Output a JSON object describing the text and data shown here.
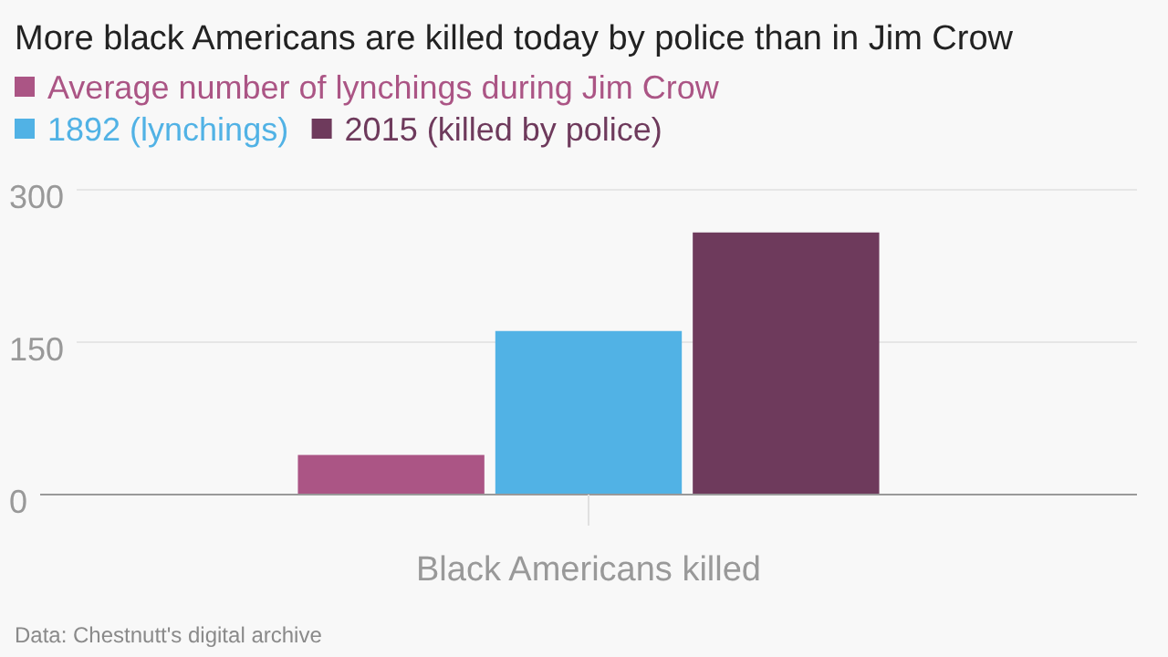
{
  "chart_data": {
    "type": "bar",
    "title": "More black Americans are killed today by police than in Jim Crow",
    "categories": [
      "Black Americans killed"
    ],
    "series": [
      {
        "name": "Average number of lynchings during Jim Crow",
        "color": "#ab5585",
        "values": [
          39
        ]
      },
      {
        "name": "1892 (lynchings)",
        "color": "#51b2e5",
        "values": [
          161
        ]
      },
      {
        "name": "2015 (killed by police)",
        "color": "#6e3a5c",
        "values": [
          258
        ]
      }
    ],
    "ylim": [
      0,
      300
    ],
    "yticks": [
      0,
      150,
      300
    ],
    "grid": "y",
    "legend": "top left",
    "annotations": [
      "Data: Chestnutt's digital archive"
    ]
  }
}
